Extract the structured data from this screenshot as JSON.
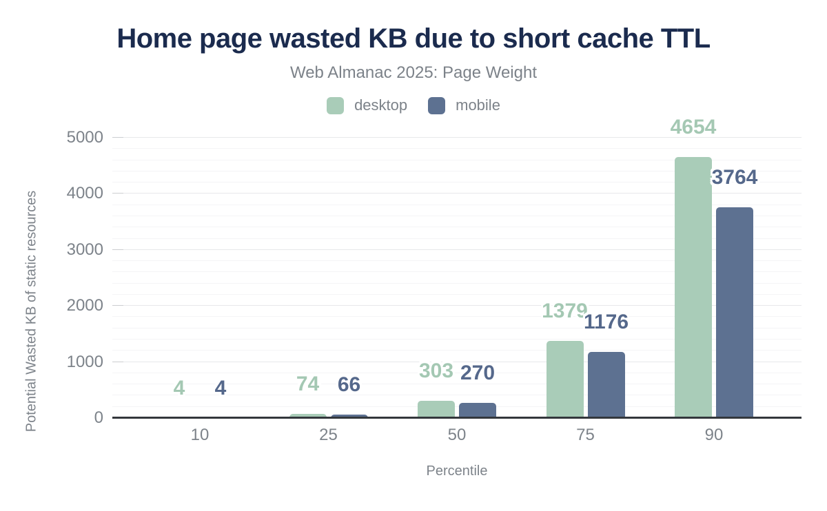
{
  "chart_data": {
    "type": "bar",
    "title": "Home page wasted KB due to short cache TTL",
    "subtitle": "Web Almanac 2025: Page Weight",
    "xlabel": "Percentile",
    "ylabel": "Potential Wasted KB of static resources",
    "categories": [
      "10",
      "25",
      "50",
      "75",
      "90"
    ],
    "series": [
      {
        "name": "desktop",
        "color": "#a9ccb8",
        "label_color": "#a4c8b3",
        "values": [
          4,
          74,
          303,
          1379,
          4654
        ]
      },
      {
        "name": "mobile",
        "color": "#5d7191",
        "label_color": "#55688b",
        "values": [
          4,
          66,
          270,
          1176,
          3764
        ]
      }
    ],
    "ylim": [
      0,
      5000
    ],
    "ytick_step": 1000,
    "minor_step": 200,
    "yticks": [
      "0",
      "1000",
      "2000",
      "3000",
      "4000",
      "5000"
    ],
    "grid": "horizontal-major-and-minor",
    "legend_position": "top-center",
    "colors": {
      "title": "#1b2b4e",
      "muted_text": "#7d838a",
      "axis_line": "#33373c",
      "grid_major": "#e7e8ea",
      "grid_minor": "#f4f4f6"
    }
  }
}
